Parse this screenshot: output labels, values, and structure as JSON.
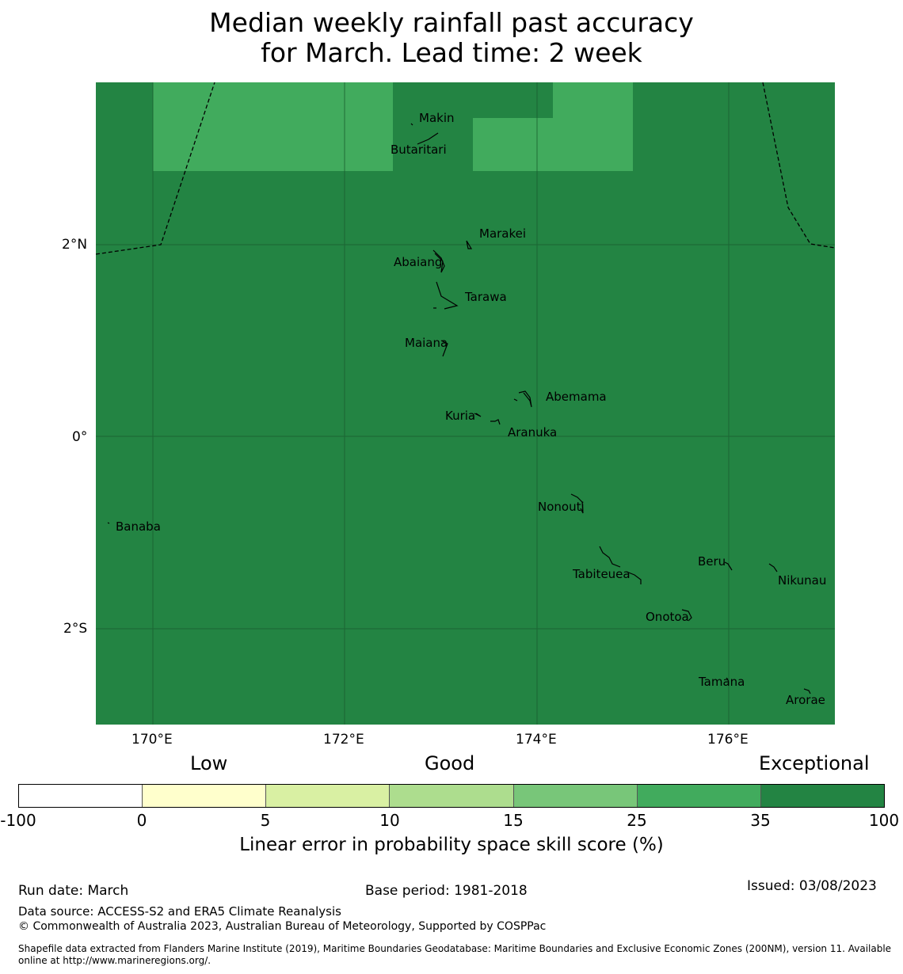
{
  "title_line1": "Median weekly rainfall past accuracy",
  "title_line2": "for March. Lead time: 2 week",
  "map": {
    "lat_ticks": [
      "2°N",
      "0°",
      "2°S"
    ],
    "lon_ticks": [
      "170°E",
      "172°E",
      "174°E",
      "176°E"
    ],
    "islands": [
      "Makin",
      "Butaritari",
      "Marakei",
      "Abaiang",
      "Tarawa",
      "Maiana",
      "Abemama",
      "Kuria",
      "Aranuka",
      "Nonouti",
      "Banaba",
      "Beru",
      "Tabiteuea",
      "Nikunau",
      "Onotoa",
      "Tamana",
      "Arorae"
    ],
    "colors": {
      "exceptional": "#238443",
      "high": "#41ab5d"
    }
  },
  "legend": {
    "categories": [
      "Low",
      "Good",
      "Exceptional"
    ],
    "ticks": [
      "-100",
      "0",
      "5",
      "10",
      "15",
      "25",
      "35",
      "100"
    ],
    "colors": [
      "#ffffff",
      "#ffffcc",
      "#d9f0a3",
      "#addd8e",
      "#78c679",
      "#41ab5d",
      "#238443"
    ],
    "label": "Linear error in probability space skill score (%)"
  },
  "footer": {
    "run_date": "Run date: March",
    "base_period": "Base period: 1981-2018",
    "issued": "Issued: 03/08/2023",
    "data_source": "Data source: ACCESS-S2 and ERA5 Climate Reanalysis",
    "copyright": "© Commonwealth of Australia 2023, Australian Bureau of Meteorology, Supported by COSPPac",
    "shapefile_1": "Shapefile data extracted from Flanders Marine Institute (2019), Maritime Boundaries Geodatabase: Maritime Boundaries and Exclusive Economic Zones (200NM), version 11. Available",
    "shapefile_2": "online at http://www.marineregions.org/."
  }
}
